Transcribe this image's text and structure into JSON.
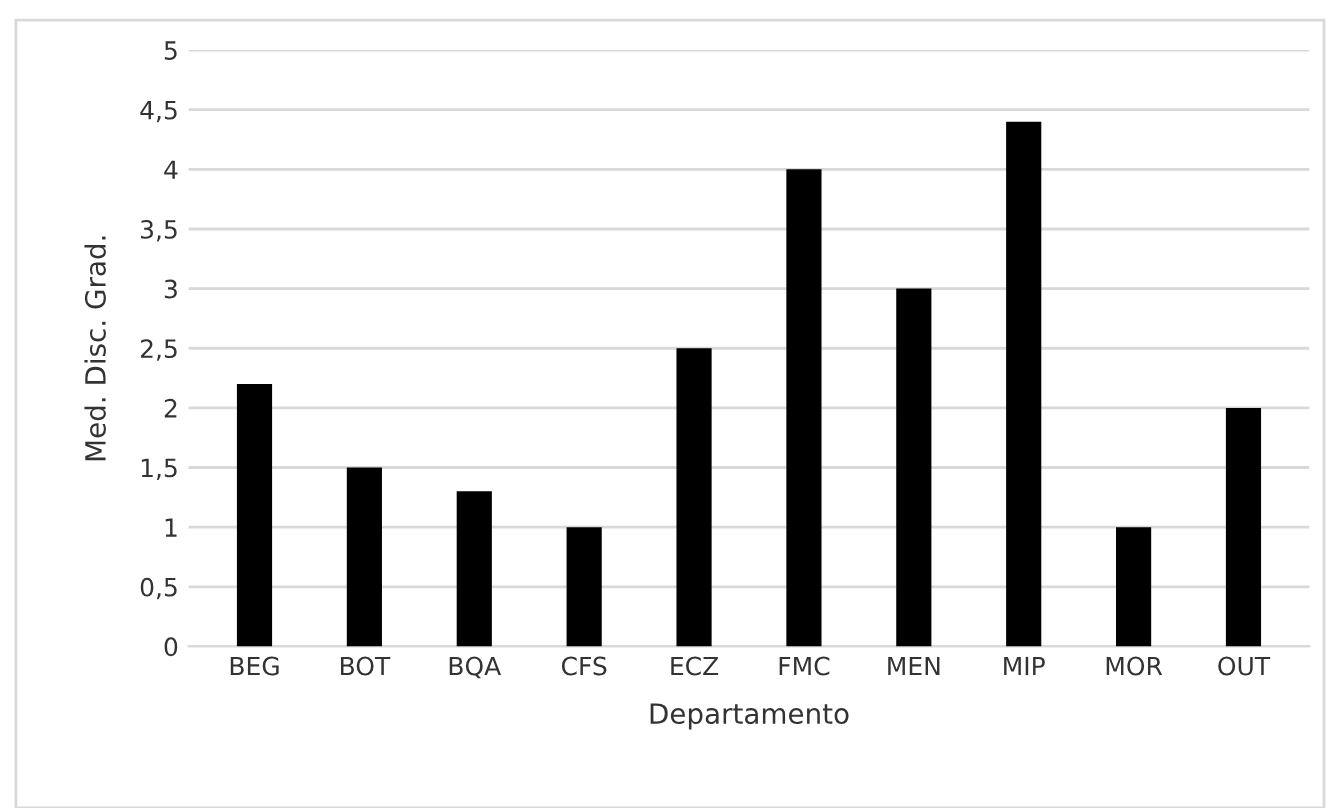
{
  "chart_data": {
    "type": "bar",
    "xlabel": "Departamento",
    "ylabel": "Med. Disc. Grad.",
    "categories": [
      "BEG",
      "BOT",
      "BQA",
      "CFS",
      "ECZ",
      "FMC",
      "MEN",
      "MIP",
      "MOR",
      "OUT"
    ],
    "values": [
      2.2,
      1.5,
      1.3,
      1.0,
      2.5,
      4.0,
      3.0,
      4.4,
      1.0,
      2.0
    ],
    "color": "#000000",
    "ylim": [
      0,
      5
    ],
    "yticks": [
      {
        "value": 0,
        "label": "0"
      },
      {
        "value": 0.5,
        "label": "0,5"
      },
      {
        "value": 1,
        "label": "1"
      },
      {
        "value": 1.5,
        "label": "1,5"
      },
      {
        "value": 2,
        "label": "2"
      },
      {
        "value": 2.5,
        "label": "2,5"
      },
      {
        "value": 3,
        "label": "3"
      },
      {
        "value": 3.5,
        "label": "3,5"
      },
      {
        "value": 4,
        "label": "4"
      },
      {
        "value": 4.5,
        "label": "4,5"
      },
      {
        "value": 5,
        "label": "5"
      }
    ],
    "grid": "y"
  }
}
